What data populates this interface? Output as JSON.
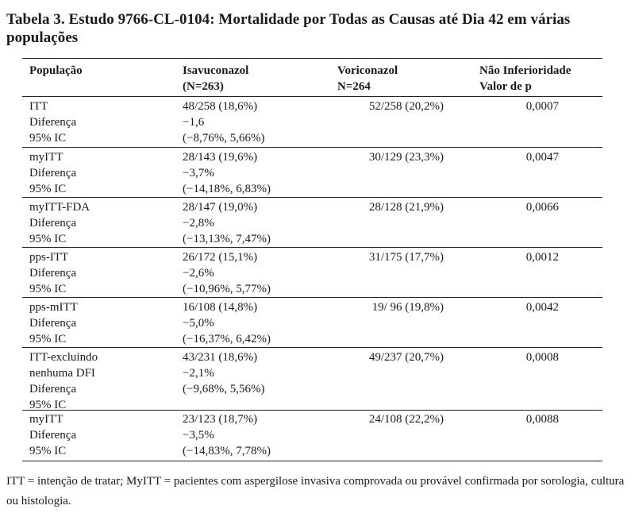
{
  "title": "Tabela 3. Estudo 9766-CL-0104: Mortalidade por Todas as Causas até Dia 42 em várias populações",
  "header": {
    "col1": "População",
    "col2_line1": "Isavuconazol",
    "col2_line2": "(N=263)",
    "col3_line1": "Voriconazol",
    "col3_line2": "N=264",
    "col4_line1": "Não Inferioridade",
    "col4_line2": "Valor de p"
  },
  "rows": [
    {
      "pop": [
        "ITT",
        "Diferença",
        "95% IC"
      ],
      "isa": [
        "48/258 (18,6%)",
        "−1,6",
        "(−8,76%, 5,66%)"
      ],
      "vori": "52/258 (20,2%)",
      "p": "0,0007"
    },
    {
      "pop": [
        "myITT",
        "Diferença",
        "95% IC"
      ],
      "isa": [
        "28/143 (19,6%)",
        "−3,7%",
        "(−14,18%, 6,83%)"
      ],
      "vori": "30/129 (23,3%)",
      "p": "0,0047"
    },
    {
      "pop": [
        "myITT-FDA",
        "Diferença",
        "95% IC"
      ],
      "isa": [
        "28/147 (19,0%)",
        "−2,8%",
        "(−13,13%, 7,47%)"
      ],
      "vori": "28/128 (21,9%)",
      "p": "0,0066"
    },
    {
      "pop": [
        "pps-ITT",
        "Diferença",
        "95% IC"
      ],
      "isa": [
        "26/172 (15,1%)",
        "−2,6%",
        "(−10,96%, 5,77%)"
      ],
      "vori": "31/175 (17,7%)",
      "p": "0,0012"
    },
    {
      "pop": [
        "pps-mITT",
        "Diferença",
        "95% IC"
      ],
      "isa": [
        "16/108 (14,8%)",
        "−5,0%",
        "(−16,37%, 6,42%)"
      ],
      "vori": "19/ 96 (19,8%)",
      "p": "0,0042"
    },
    {
      "pop": [
        "ITT-excluindo",
        "nenhuma DFI",
        "Diferença",
        "95% IC"
      ],
      "isa": [
        "43/231 (18,6%)",
        "−2,1%",
        "(−9,68%, 5,56%)"
      ],
      "vori": "49/237 (20,7%)",
      "p": "0,0008"
    },
    {
      "pop": [
        "myITT",
        "Diferença",
        "95% IC"
      ],
      "isa": [
        "23/123 (18,7%)",
        "−3,5%",
        "(−14,83%, 7,78%)"
      ],
      "vori": "24/108 (22,2%)",
      "p": "0,0088"
    }
  ],
  "footnote": "ITT = intenção de tratar; MyITT = pacientes com aspergilose invasiva comprovada ou provável confirmada por sorologia, cultura ou histologia."
}
